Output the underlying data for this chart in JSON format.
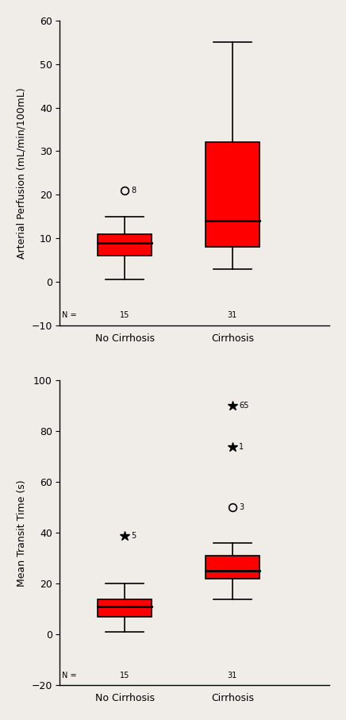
{
  "plot1": {
    "ylabel": "Arterial Perfusion (mL/min/100mL)",
    "ylim": [
      -10,
      60
    ],
    "yticks": [
      -10,
      0,
      10,
      20,
      30,
      40,
      50,
      60
    ],
    "groups": [
      {
        "label": "No Cirrhosis",
        "n": 15,
        "x": 1,
        "q1": 6.0,
        "median": 9.0,
        "q3": 11.0,
        "whisker_low": 0.5,
        "whisker_high": 15.0,
        "outliers_circle": [
          {
            "y": 21.0,
            "label": "8"
          }
        ],
        "outliers_star": []
      },
      {
        "label": "Cirrhosis",
        "n": 31,
        "x": 2,
        "q1": 8.0,
        "median": 14.0,
        "q3": 32.0,
        "whisker_low": 3.0,
        "whisker_high": 55.0,
        "outliers_circle": [],
        "outliers_star": []
      }
    ],
    "box_color": "#FF0000",
    "box_width": 0.5
  },
  "plot2": {
    "ylabel": "Mean Transit Time (s)",
    "ylim": [
      -20,
      100
    ],
    "yticks": [
      -20,
      0,
      20,
      40,
      60,
      80,
      100
    ],
    "groups": [
      {
        "label": "No Cirrhosis",
        "n": 15,
        "x": 1,
        "q1": 7.0,
        "median": 11.0,
        "q3": 14.0,
        "whisker_low": 1.0,
        "whisker_high": 20.0,
        "outliers_circle": [],
        "outliers_star": [
          {
            "y": 39.0,
            "label": "5"
          }
        ]
      },
      {
        "label": "Cirrhosis",
        "n": 31,
        "x": 2,
        "q1": 22.0,
        "median": 25.0,
        "q3": 31.0,
        "whisker_low": 14.0,
        "whisker_high": 36.0,
        "outliers_circle": [
          {
            "y": 50.0,
            "label": "3"
          }
        ],
        "outliers_star": [
          {
            "y": 74.0,
            "label": "1"
          },
          {
            "y": 90.0,
            "label": "65"
          }
        ]
      }
    ],
    "box_color": "#FF0000",
    "box_width": 0.5
  },
  "background_color": "#f0ede8",
  "font_size": 9
}
